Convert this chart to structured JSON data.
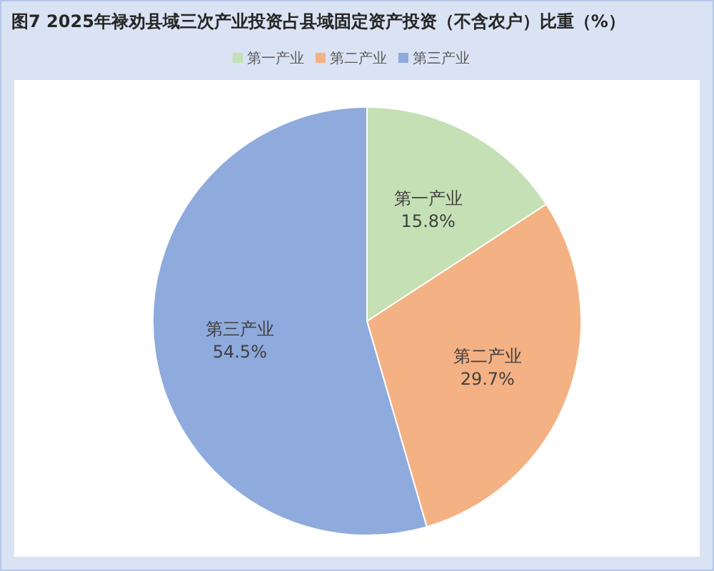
{
  "chart_data": {
    "type": "pie",
    "title": "图7 2025年禄劝县域三次产业投资占县域固定资产投资（不含农户）比重（%）",
    "categories": [
      "第一产业",
      "第二产业",
      "第三产业"
    ],
    "values": [
      15.8,
      29.7,
      54.5
    ],
    "value_labels": [
      "15.8%",
      "29.7%",
      "54.5%"
    ],
    "colors": [
      "#c5e0b4",
      "#f4b183",
      "#8faadc"
    ],
    "legend": "top"
  }
}
